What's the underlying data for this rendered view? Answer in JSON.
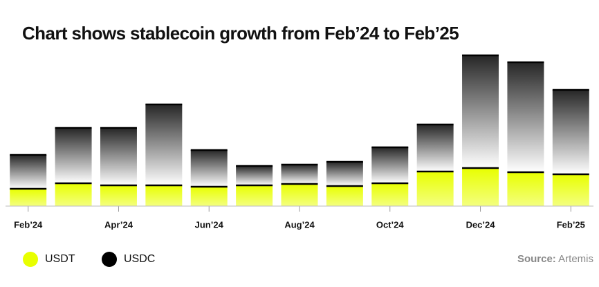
{
  "chart_data": {
    "type": "stacked-bar",
    "title": "Chart shows stablecoin growth from Feb’24 to Feb’25",
    "categories": [
      "Feb’24",
      null,
      "Apr’24",
      null,
      "Jun’24",
      null,
      "Aug’24",
      null,
      "Oct’24",
      null,
      "Dec’24",
      null,
      "Feb’25"
    ],
    "series": [
      {
        "name": "USDT",
        "color": "#e8ff00",
        "values": [
          25,
          33,
          30,
          30,
          28,
          30,
          32,
          29,
          33,
          50,
          55,
          49,
          46
        ]
      },
      {
        "name": "USDC",
        "color": "#000000",
        "values": [
          49,
          80,
          83,
          117,
          53,
          28,
          28,
          35,
          52,
          68,
          163,
          159,
          122
        ]
      }
    ],
    "source_label": "Source:",
    "source": "Artemis"
  }
}
